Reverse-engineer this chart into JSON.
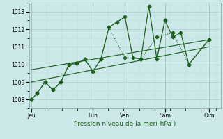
{
  "xlabel": "Pression niveau de la mer( hPa )",
  "bg_color": "#cce8e8",
  "grid_color_major": "#aacccc",
  "grid_color_minor": "#bbdddd",
  "line_color": "#1a5c1a",
  "ylim": [
    1007.5,
    1013.5
  ],
  "yticks": [
    1008,
    1009,
    1010,
    1011,
    1012,
    1013
  ],
  "xlim": [
    0,
    24
  ],
  "day_labels": [
    "Jeu",
    "Lun",
    "Ven",
    "Sam",
    "Dim"
  ],
  "day_positions": [
    0.3,
    8,
    12,
    17,
    22.5
  ],
  "vline_positions": [
    0.3,
    8,
    12,
    17,
    22.5
  ],
  "series_jagged_x": [
    0.3,
    1,
    2,
    3,
    4,
    5,
    6,
    7,
    8,
    9,
    10,
    11,
    12,
    13,
    14,
    15,
    16,
    17,
    18,
    19,
    20,
    22.5
  ],
  "series_jagged_y": [
    1008.0,
    1008.35,
    1009.0,
    1008.55,
    1009.0,
    1010.0,
    1010.05,
    1010.3,
    1009.6,
    1010.3,
    1012.1,
    1012.4,
    1012.7,
    1010.4,
    1010.3,
    1013.3,
    1010.3,
    1012.5,
    1011.55,
    1011.8,
    1010.0,
    1011.4
  ],
  "series_dotted_x": [
    0.3,
    1,
    2,
    3,
    4,
    5,
    6,
    7,
    8,
    9,
    10,
    12,
    14,
    16,
    18,
    20,
    22.5
  ],
  "series_dotted_y": [
    1008.0,
    1008.35,
    1009.0,
    1008.55,
    1009.0,
    1010.0,
    1010.05,
    1010.3,
    1009.6,
    1010.3,
    1012.1,
    1010.4,
    1010.3,
    1011.55,
    1011.8,
    1010.0,
    1011.4
  ],
  "trend1_x": [
    0.3,
    22.5
  ],
  "trend1_y": [
    1009.7,
    1011.4
  ],
  "trend2_x": [
    0.3,
    22.5
  ],
  "trend2_y": [
    1009.0,
    1011.0
  ],
  "markersize": 2.5
}
